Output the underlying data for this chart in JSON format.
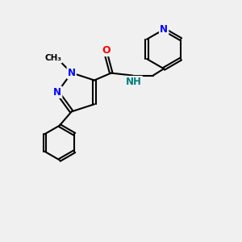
{
  "background_color": "#f0f0f0",
  "atom_colors": {
    "C": "#000000",
    "N": "#0000ff",
    "O": "#ff0000",
    "H": "#008080"
  },
  "bond_color": "#000000",
  "figsize": [
    3.0,
    3.0
  ],
  "dpi": 100
}
